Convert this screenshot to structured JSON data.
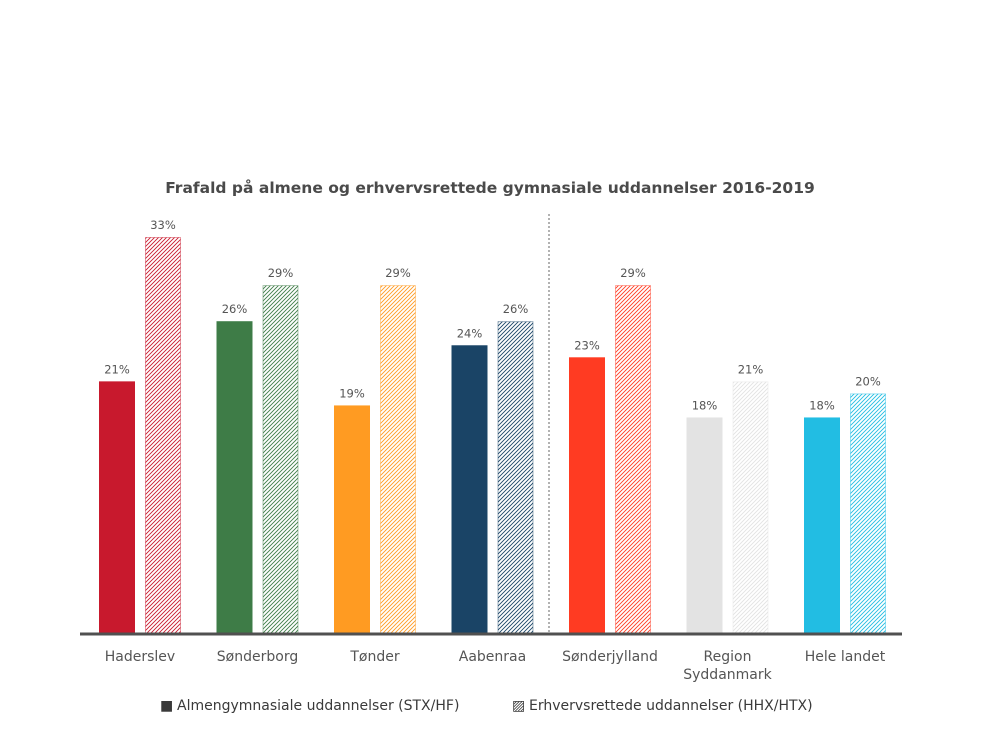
{
  "chart_data": {
    "type": "bar",
    "title": "Frafald på almene og erhvervsrettede gymnasiale uddannelser 2016-2019",
    "categories": [
      {
        "lines": [
          "Haderslev"
        ],
        "color": "#c8192d"
      },
      {
        "lines": [
          "Sønderborg"
        ],
        "color": "#3e7c47"
      },
      {
        "lines": [
          "Tønder"
        ],
        "color": "#ff9b22"
      },
      {
        "lines": [
          "Aabenraa"
        ],
        "color": "#1a4466"
      },
      {
        "lines": [
          "Sønderjylland"
        ],
        "color": "#ff3b22"
      },
      {
        "lines": [
          "Region",
          "Syddanmark"
        ],
        "color": "#e3e3e3"
      },
      {
        "lines": [
          "Hele landet"
        ],
        "color": "#22bde3"
      }
    ],
    "series": [
      {
        "name": "Almengymnasiale uddannelser (STX/HF)",
        "pattern": "solid",
        "values": [
          21,
          26,
          19,
          24,
          23,
          18,
          18
        ],
        "labels": [
          "21%",
          "26%",
          "19%",
          "24%",
          "23%",
          "18%",
          "18%"
        ]
      },
      {
        "name": "Erhvervsrettede uddannelser (HHX/HTX)",
        "pattern": "hatched",
        "values": [
          33,
          29,
          29,
          26,
          29,
          21,
          20
        ],
        "labels": [
          "33%",
          "29%",
          "29%",
          "26%",
          "29%",
          "21%",
          "20%"
        ]
      }
    ],
    "ylim": [
      0,
      33
    ],
    "xlabel": "",
    "ylabel": "",
    "grid": false,
    "separator_after_category": 3,
    "legend": {
      "position": "bottom",
      "solid_marker": "■",
      "hatched_marker": "▨"
    }
  }
}
